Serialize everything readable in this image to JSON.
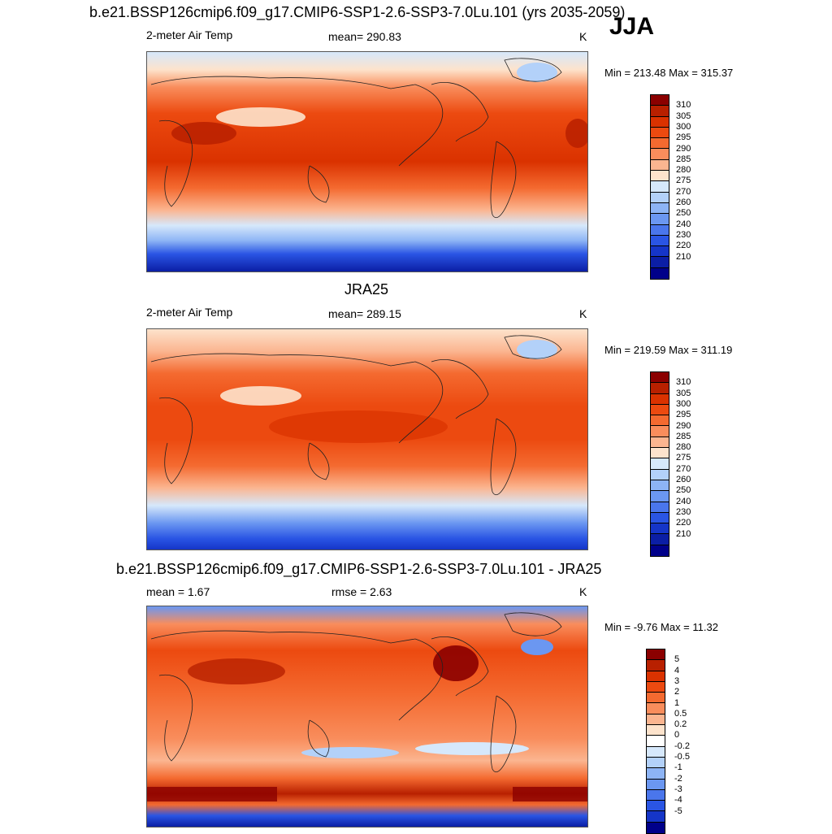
{
  "header": {
    "title": "b.e21.BSSP126cmip6.f09_g17.CMIP6-SSP1-2.6-SSP3-7.0Lu.101 (yrs 2035-2059)",
    "season": "JJA"
  },
  "panels": [
    {
      "left_label": "2-meter Air Temp",
      "center_label": "mean= 290.83",
      "units": "K",
      "minmax": "Min = 213.48 Max = 315.37",
      "colorbar": {
        "colors": [
          "#8b0000",
          "#b82000",
          "#da3200",
          "#ec4a10",
          "#f46a30",
          "#f98d5c",
          "#fbb590",
          "#fde3cc",
          "#d6e8fb",
          "#b3d1f9",
          "#8db4f5",
          "#6b97f1",
          "#4a76ec",
          "#2a55e4",
          "#1535c8",
          "#0b1ea5",
          "#00008a"
        ],
        "labels": [
          "310",
          "305",
          "300",
          "295",
          "290",
          "285",
          "280",
          "275",
          "270",
          "260",
          "250",
          "240",
          "230",
          "220",
          "210"
        ]
      }
    },
    {
      "title": "JRA25",
      "left_label": "2-meter Air Temp",
      "center_label": "mean= 289.15",
      "units": "K",
      "minmax": "Min = 219.59 Max = 311.19",
      "colorbar": {
        "colors": [
          "#8b0000",
          "#b82000",
          "#da3200",
          "#ec4a10",
          "#f46a30",
          "#f98d5c",
          "#fbb590",
          "#fde3cc",
          "#d6e8fb",
          "#b3d1f9",
          "#8db4f5",
          "#6b97f1",
          "#4a76ec",
          "#2a55e4",
          "#1535c8",
          "#0b1ea5",
          "#00008a"
        ],
        "labels": [
          "310",
          "305",
          "300",
          "295",
          "290",
          "285",
          "280",
          "275",
          "270",
          "260",
          "250",
          "240",
          "230",
          "220",
          "210"
        ]
      }
    },
    {
      "title": "b.e21.BSSP126cmip6.f09_g17.CMIP6-SSP1-2.6-SSP3-7.0Lu.101 - JRA25",
      "left_label": "mean =   1.67",
      "center_label": "rmse =   2.63",
      "units": "K",
      "minmax": "Min =  -9.76 Max =  11.32",
      "colorbar": {
        "colors": [
          "#8b0000",
          "#b82000",
          "#da3200",
          "#ec4a10",
          "#f46a30",
          "#f98d5c",
          "#fbb590",
          "#fde3cc",
          "#ffffff",
          "#d6e8fb",
          "#b3d1f9",
          "#8db4f5",
          "#6b97f1",
          "#4a76ec",
          "#2a55e4",
          "#1535c8",
          "#00008a"
        ],
        "labels": [
          "5",
          "4",
          "3",
          "2",
          "1",
          "0.5",
          "0.2",
          "0",
          "-0.2",
          "-0.5",
          "-1",
          "-2",
          "-3",
          "-4",
          "-5"
        ]
      }
    }
  ]
}
